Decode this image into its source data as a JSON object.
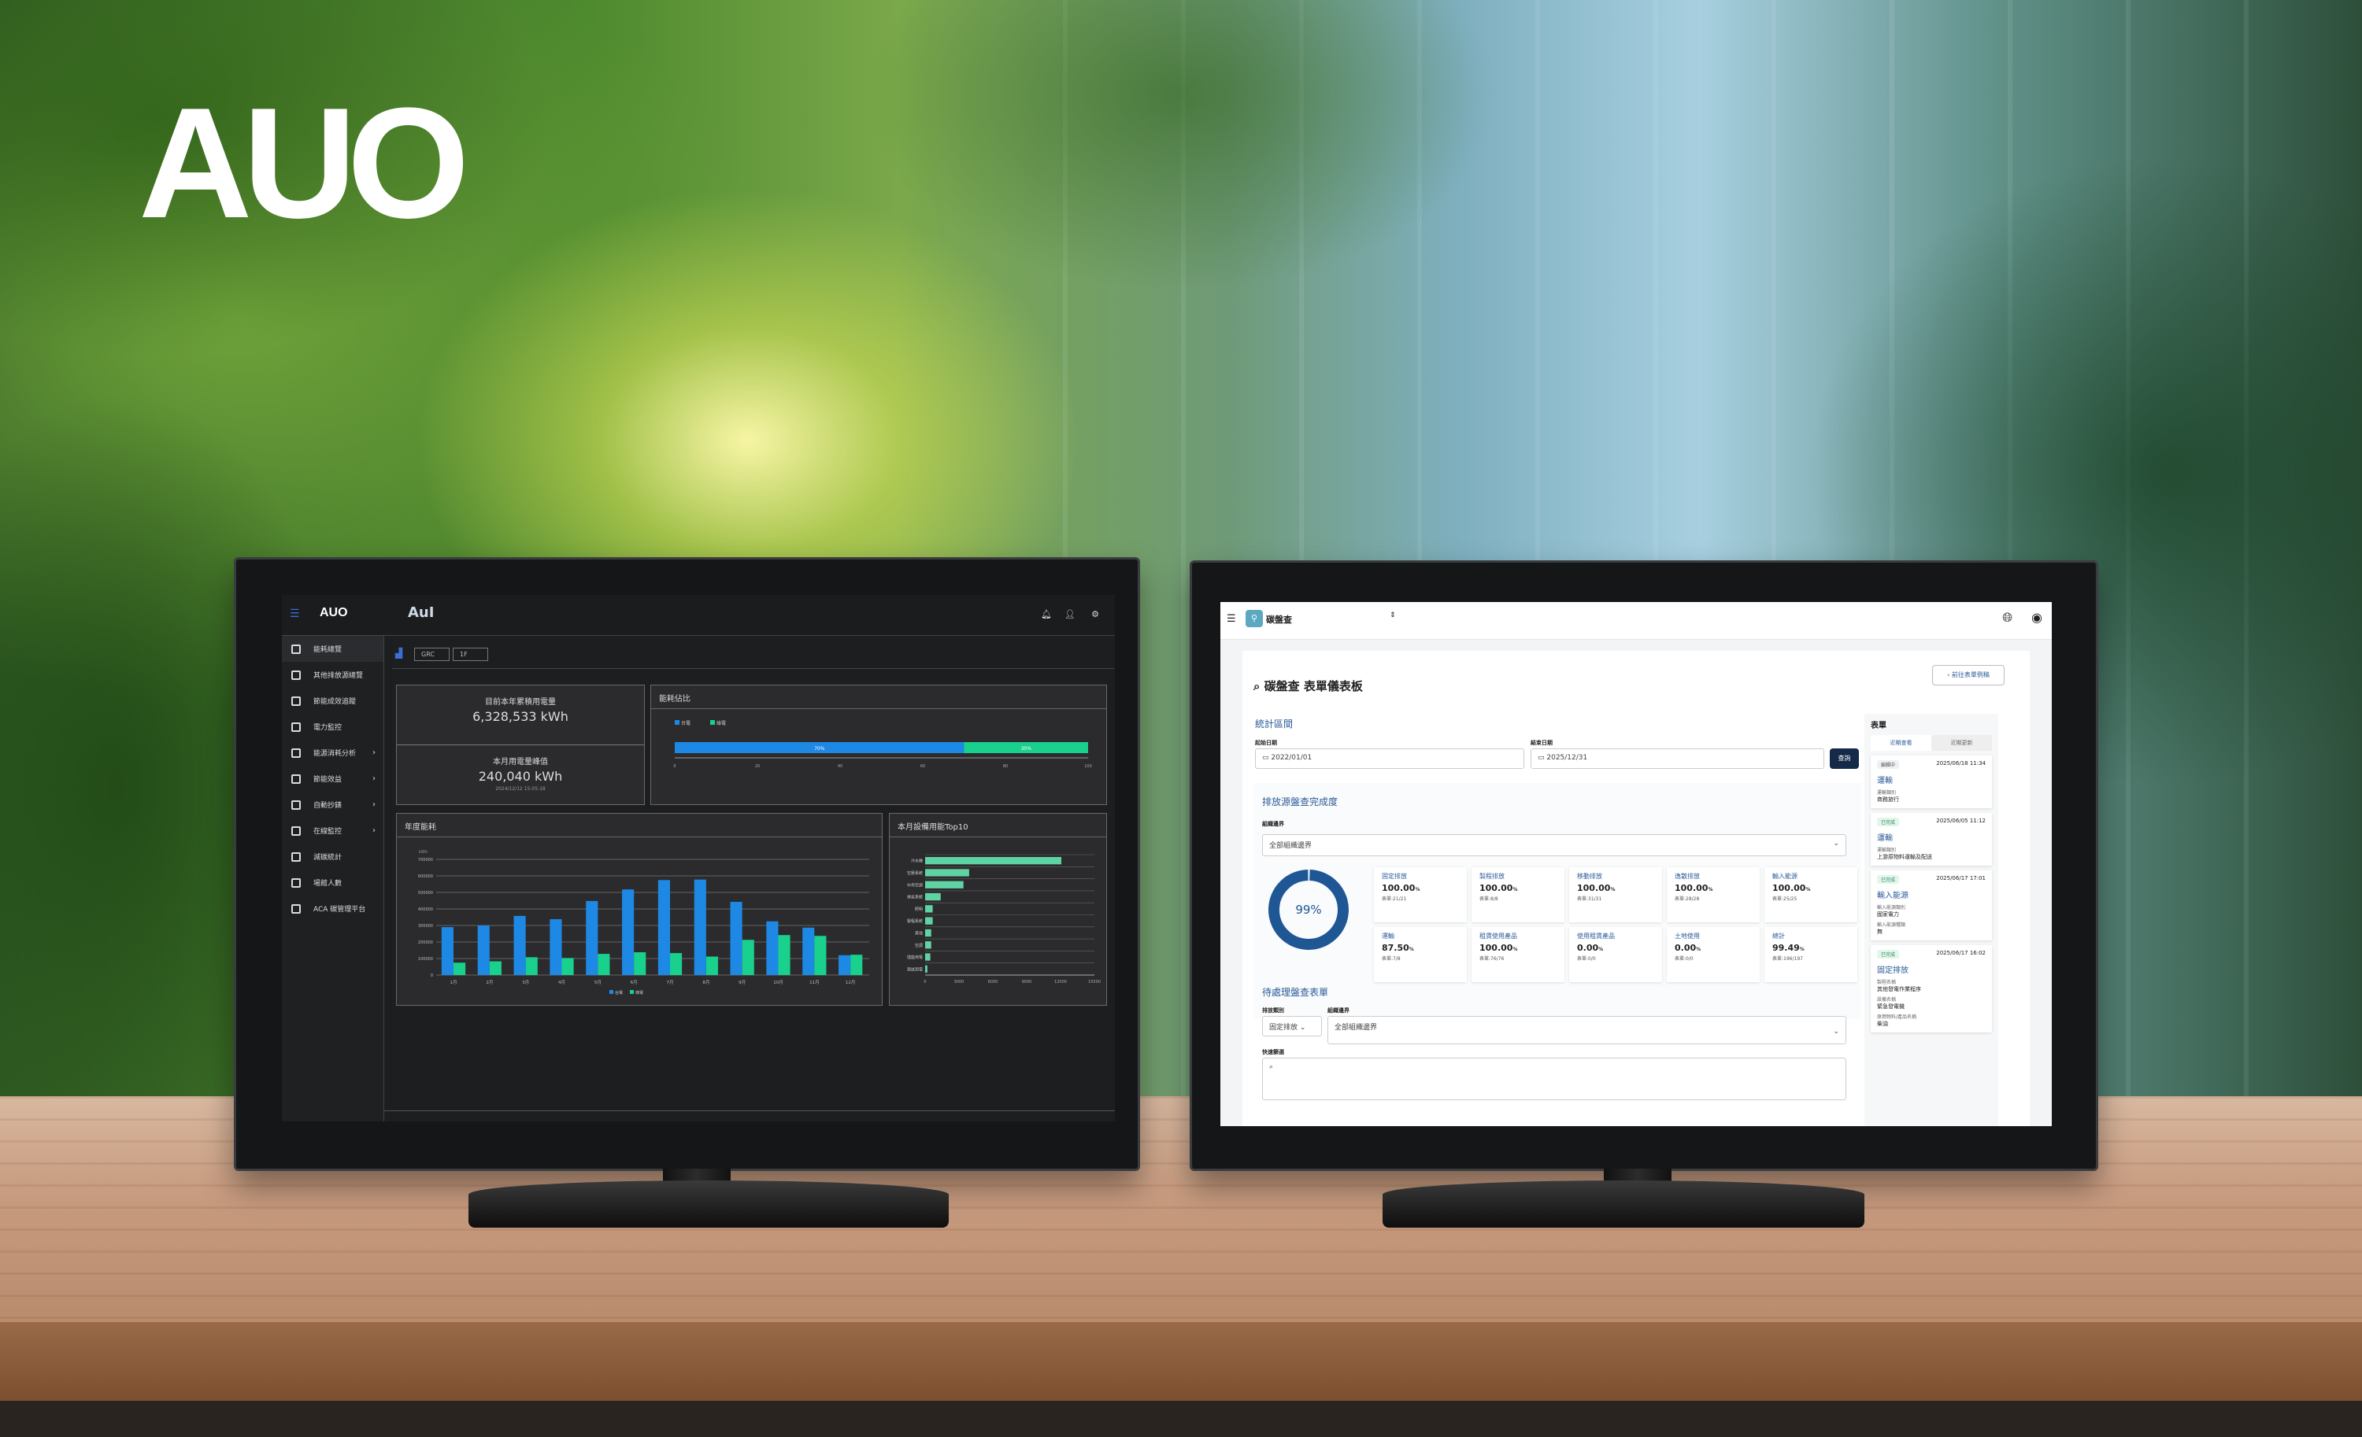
{
  "brand": {
    "logo_text": "AUO"
  },
  "left_app": {
    "header": {
      "logo_text": "AUO",
      "sub_logo": "AuI"
    },
    "sidebar": {
      "items": [
        {
          "label": "能耗總覽",
          "icon": "grid-icon",
          "active": true
        },
        {
          "label": "其他排放源總覽",
          "icon": "table-icon"
        },
        {
          "label": "節能成效追蹤",
          "icon": "checklist-icon"
        },
        {
          "label": "電力監控",
          "icon": "gauge-icon"
        },
        {
          "label": "能源消耗分析",
          "icon": "bar-chart-icon",
          "expandable": true
        },
        {
          "label": "節能效益",
          "icon": "phone-icon",
          "expandable": true
        },
        {
          "label": "自動抄錶",
          "icon": "meter-icon",
          "expandable": true
        },
        {
          "label": "在線監控",
          "icon": "monitor-icon",
          "expandable": true
        },
        {
          "label": "減碳統計",
          "icon": "recycle-icon"
        },
        {
          "label": "場館人數",
          "icon": "person-icon"
        },
        {
          "label": "ACA 碳管理平台",
          "icon": "bookmark-icon"
        }
      ]
    },
    "filters": {
      "site": "GRC",
      "floor": "1F"
    },
    "kpi": {
      "annual_title": "目前本年累積用電量",
      "annual_value": "6,328,533 kWh",
      "peak_title": "本月用電量峰值",
      "peak_value": "240,040 kWh",
      "peak_time": "2024/12/12 15:05:18"
    },
    "share_card": {
      "title": "能耗佔比"
    },
    "annual_card": {
      "title": "年度能耗"
    },
    "top10_card": {
      "title": "本月設備用能Top10"
    }
  },
  "chart_data": [
    {
      "type": "bar",
      "title": "能耗佔比",
      "orientation": "horizontal-stacked",
      "legend_position": "top-left",
      "series": [
        {
          "name": "台電",
          "values": [
            70
          ],
          "label": "70%",
          "color": "#1e88e5"
        },
        {
          "name": "綠電",
          "values": [
            30
          ],
          "label": "30%",
          "color": "#19d08c"
        }
      ],
      "xlim": [
        0,
        100
      ],
      "xticks": [
        0,
        20,
        40,
        60,
        80,
        100
      ]
    },
    {
      "type": "bar",
      "title": "年度能耗",
      "ylabel": "kWh",
      "ylim": [
        0,
        700000
      ],
      "grid": true,
      "legend_position": "bottom",
      "yticks": [
        0,
        100000,
        200000,
        300000,
        400000,
        500000,
        600000,
        700000
      ],
      "categories": [
        "1月",
        "2月",
        "3月",
        "4月",
        "5月",
        "6月",
        "7月",
        "8月",
        "9月",
        "10月",
        "11月",
        "12月"
      ],
      "series": [
        {
          "name": "台電",
          "color": "#1e88e5",
          "values": [
            290000,
            300000,
            358000,
            338000,
            448000,
            518000,
            575000,
            578000,
            443000,
            325000,
            287000,
            120000
          ]
        },
        {
          "name": "綠電",
          "color": "#19d08c",
          "values": [
            75000,
            83000,
            108000,
            103000,
            128000,
            138000,
            133000,
            112000,
            213000,
            242000,
            237000,
            123000
          ]
        }
      ]
    },
    {
      "type": "bar",
      "title": "本月設備用能Top10",
      "orientation": "horizontal",
      "xlim": [
        0,
        15000
      ],
      "grid": true,
      "xticks": [
        0,
        3000,
        6000,
        9000,
        12000,
        15000
      ],
      "categories": [
        "冷水機",
        "空壓系統",
        "中央空調",
        "排氣系統",
        "照明",
        "製程系統",
        "其他",
        "空調",
        "插座用電",
        "測試用電"
      ],
      "values": [
        12070,
        3900,
        3400,
        1380,
        670,
        670,
        540,
        540,
        460,
        200
      ],
      "color": "#5fd3a4"
    }
  ],
  "right_app": {
    "header": {
      "app_name": "碳盤查"
    },
    "title": "碳盤查 表單儀表板",
    "back_button": "前往表單例稿",
    "period": {
      "heading": "統計區間",
      "start_label": "起始日期",
      "start_value": "2022/01/01",
      "end_label": "結束日期",
      "end_value": "2025/12/31",
      "query_button": "查詢"
    },
    "completion": {
      "heading": "排放源盤查完成度",
      "boundary_label": "組織邊界",
      "boundary_value": "全部組織邊界",
      "donut_value": 0.99,
      "donut_label": "99%",
      "stats": [
        {
          "name": "固定排放",
          "pct": "100.00",
          "count": "表單:21/21"
        },
        {
          "name": "製程排放",
          "pct": "100.00",
          "count": "表單:8/8"
        },
        {
          "name": "移動排放",
          "pct": "100.00",
          "count": "表單:31/31"
        },
        {
          "name": "逸散排放",
          "pct": "100.00",
          "count": "表單:28/28"
        },
        {
          "name": "輸入能源",
          "pct": "100.00",
          "count": "表單:25/25"
        },
        {
          "name": "運輸",
          "pct": "87.50",
          "count": "表單:7/8"
        },
        {
          "name": "租賃使用產品",
          "pct": "100.00",
          "count": "表單:76/76"
        },
        {
          "name": "使用租賃產品",
          "pct": "0.00",
          "count": "表單:0/0"
        },
        {
          "name": "土地使用",
          "pct": "0.00",
          "count": "表單:0/0"
        },
        {
          "name": "總計",
          "pct": "99.49",
          "count": "表單:196/197"
        }
      ],
      "pct_unit": "%"
    },
    "pending": {
      "heading": "待處理盤查表單",
      "category_label": "排放類別",
      "category_value": "固定排放",
      "boundary_label": "組織邊界",
      "boundary_value": "全部組織邊界",
      "search_label": "快速篩選",
      "search_placeholder": ""
    },
    "forms_panel": {
      "heading": "表單",
      "tabs": [
        "近期查看",
        "近期更新"
      ],
      "items": [
        {
          "status": "編輯中",
          "time": "2025/06/18 11:34",
          "title": "運輸",
          "fields": [
            {
              "label": "運輸類別",
              "value": "商務旅行"
            }
          ]
        },
        {
          "status": "已完成",
          "time": "2025/06/05 11:12",
          "title": "運輸",
          "fields": [
            {
              "label": "運輸類別",
              "value": "上游原物料運輸及配送"
            }
          ]
        },
        {
          "status": "已完成",
          "time": "2025/06/17 17:01",
          "title": "輸入能源",
          "fields": [
            {
              "label": "輸入能源類別",
              "value": "國家電力"
            },
            {
              "label": "輸入能源種類",
              "value": "無"
            }
          ]
        },
        {
          "status": "已完成",
          "time": "2025/06/17 16:02",
          "title": "固定排放",
          "fields": [
            {
              "label": "製程名稱",
              "value": "其他發電作業程序"
            },
            {
              "label": "設備名稱",
              "value": "緊急發電機"
            },
            {
              "label": "原燃物料/產品名稱",
              "value": "柴油"
            }
          ]
        }
      ]
    }
  }
}
